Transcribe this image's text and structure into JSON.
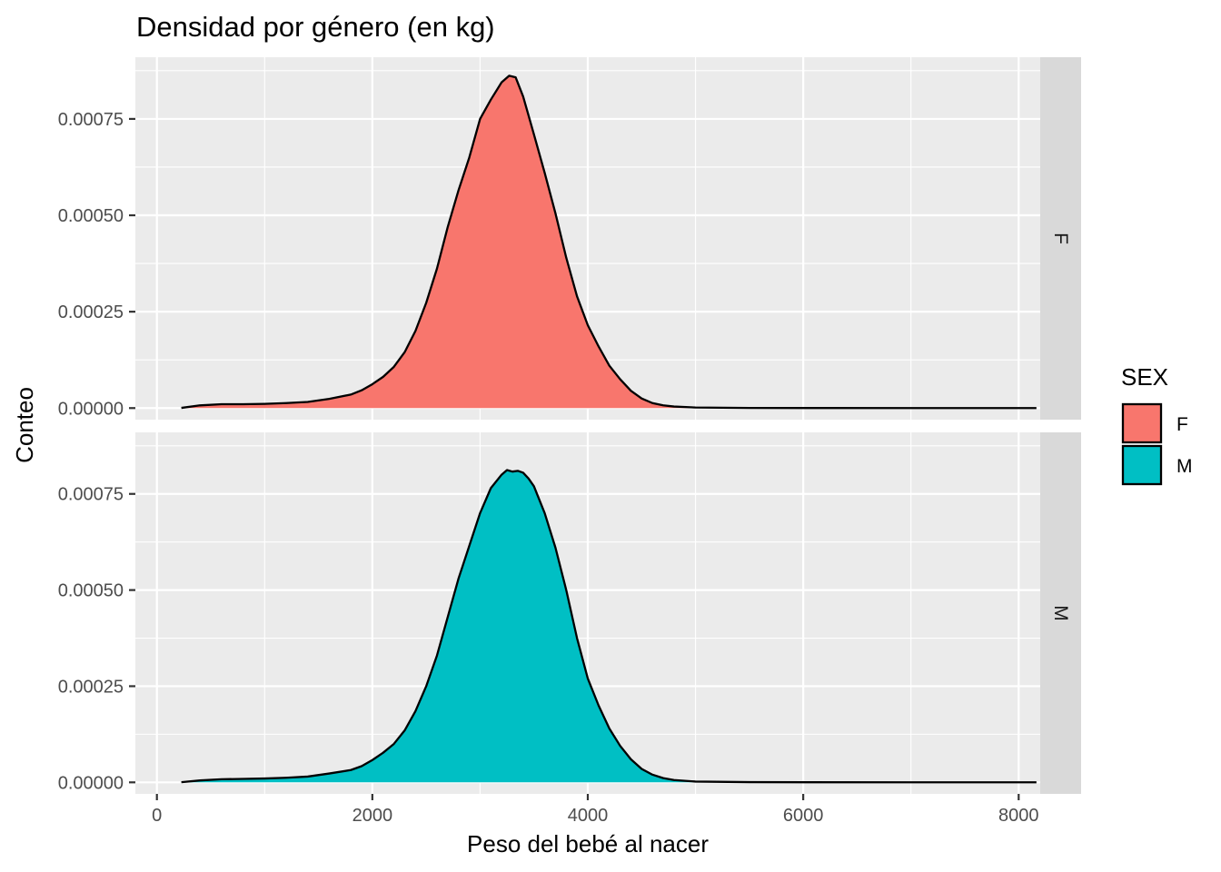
{
  "chart_data": {
    "type": "area",
    "title": "Densidad por género (en kg)",
    "xlabel": "Peso del bebé al nacer",
    "ylabel": "Conteo",
    "xlim": [
      -200,
      8200
    ],
    "ylim": [
      -3e-05,
      0.00091
    ],
    "x_ticks": [
      0,
      2000,
      4000,
      6000,
      8000
    ],
    "x_tick_labels": [
      "0",
      "2000",
      "4000",
      "6000",
      "8000"
    ],
    "y_ticks": [
      0,
      0.00025,
      0.0005,
      0.00075
    ],
    "y_tick_labels": [
      "0.00000",
      "0.00025",
      "0.00050",
      "0.00075"
    ],
    "grid": true,
    "facet_by": "SEX",
    "legend": {
      "title": "SEX",
      "position": "right",
      "entries": [
        {
          "label": "F",
          "color": "#F8766D"
        },
        {
          "label": "M",
          "color": "#00BFC4"
        }
      ]
    },
    "series": [
      {
        "name": "F",
        "color": "#F8766D",
        "x": [
          227,
          400,
          600,
          800,
          1000,
          1200,
          1400,
          1600,
          1800,
          1900,
          2000,
          2100,
          2200,
          2300,
          2400,
          2500,
          2600,
          2700,
          2800,
          2900,
          3000,
          3100,
          3200,
          3270,
          3330,
          3400,
          3500,
          3600,
          3700,
          3800,
          3900,
          4000,
          4100,
          4200,
          4300,
          4400,
          4500,
          4600,
          4700,
          4800,
          5000,
          5500,
          6000,
          7000,
          8165
        ],
        "y": [
          5e-07,
          7e-06,
          1e-05,
          1e-05,
          1.1e-05,
          1.3e-05,
          1.6e-05,
          2.4e-05,
          3.5e-05,
          4.6e-05,
          6.2e-05,
          8.1e-05,
          0.000107,
          0.000145,
          0.0002,
          0.000273,
          0.000362,
          0.00047,
          0.000565,
          0.00065,
          0.00075,
          0.0008,
          0.000845,
          0.000862,
          0.000858,
          0.000808,
          0.00071,
          0.00061,
          0.000505,
          0.00039,
          0.00029,
          0.000215,
          0.00016,
          0.00011,
          7.5e-05,
          4.5e-05,
          2.5e-05,
          1.3e-05,
          7e-06,
          4e-06,
          1.5e-06,
          4e-07,
          2e-07,
          1e-07,
          1e-07
        ]
      },
      {
        "name": "M",
        "color": "#00BFC4",
        "x": [
          227,
          400,
          600,
          800,
          1000,
          1200,
          1400,
          1600,
          1800,
          1900,
          2000,
          2100,
          2200,
          2300,
          2400,
          2500,
          2600,
          2700,
          2800,
          2900,
          3000,
          3100,
          3200,
          3250,
          3300,
          3350,
          3400,
          3450,
          3500,
          3600,
          3700,
          3800,
          3900,
          4000,
          4100,
          4200,
          4300,
          4400,
          4500,
          4600,
          4700,
          4800,
          5000,
          5500,
          6000,
          7000,
          8165
        ],
        "y": [
          5e-07,
          5e-06,
          8e-06,
          9e-06,
          1e-05,
          1.2e-05,
          1.5e-05,
          2.3e-05,
          3.2e-05,
          4.2e-05,
          5.8e-05,
          7.7e-05,
          0.0001,
          0.000135,
          0.000185,
          0.00025,
          0.00033,
          0.00043,
          0.00053,
          0.000615,
          0.0007,
          0.000765,
          0.0008,
          0.000812,
          0.000808,
          0.00081,
          0.000805,
          0.00079,
          0.00077,
          0.0007,
          0.00061,
          0.0005,
          0.000375,
          0.00027,
          0.0002,
          0.00014,
          9.5e-05,
          6e-05,
          3.5e-05,
          2e-05,
          1.1e-05,
          6e-06,
          2e-06,
          6e-07,
          3e-07,
          1e-07,
          1e-07
        ]
      }
    ]
  }
}
